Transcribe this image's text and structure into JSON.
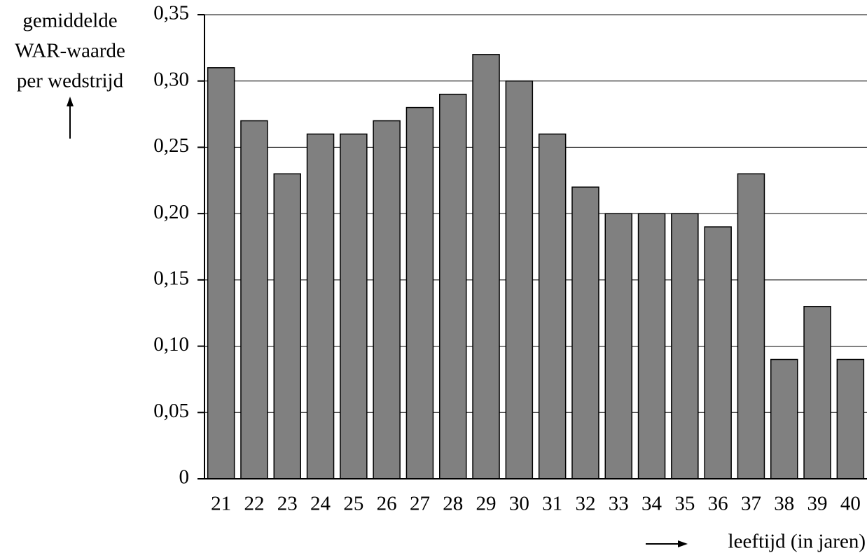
{
  "chart_data": {
    "type": "bar",
    "y_label": [
      "gemiddelde",
      "WAR-waarde",
      "per wedstrijd"
    ],
    "x_label": "leeftijd (in jaren)",
    "categories": [
      "21",
      "22",
      "23",
      "24",
      "25",
      "26",
      "27",
      "28",
      "29",
      "30",
      "31",
      "32",
      "33",
      "34",
      "35",
      "36",
      "37",
      "38",
      "39",
      "40"
    ],
    "values": [
      0.31,
      0.27,
      0.23,
      0.26,
      0.26,
      0.27,
      0.28,
      0.29,
      0.32,
      0.3,
      0.26,
      0.22,
      0.2,
      0.2,
      0.2,
      0.19,
      0.23,
      0.09,
      0.13,
      0.09
    ],
    "color": "#808080",
    "ylim": [
      0,
      0.35
    ],
    "yticks": [
      0,
      {
        "value": 0.05,
        "label": "0,05"
      },
      {
        "value": 0.1,
        "label": "0,10"
      },
      {
        "value": 0.15,
        "label": "0,15"
      },
      {
        "value": 0.2,
        "label": "0,20"
      },
      {
        "value": 0.25,
        "label": "0,25"
      },
      {
        "value": 0.3,
        "label": "0,30"
      },
      {
        "value": 0.35,
        "label": "0,35"
      }
    ],
    "grid": true
  }
}
